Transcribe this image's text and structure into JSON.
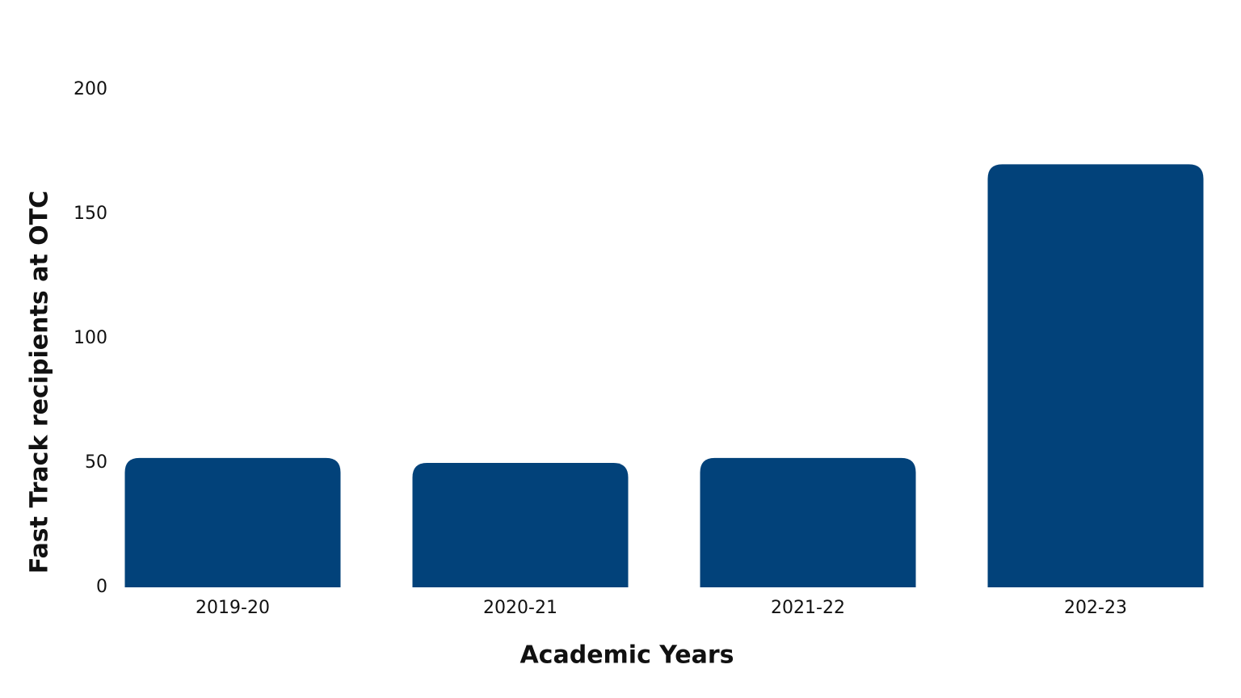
{
  "chart_data": {
    "type": "bar",
    "x_label": "Academic Years",
    "y_label": "Fast Track recipients at OTC",
    "categories": [
      "2019-20",
      "2020-21",
      "2021-22",
      "202-23"
    ],
    "values": [
      52,
      50,
      52,
      170
    ],
    "color": "#02427a",
    "ylim": [
      0,
      200
    ],
    "yticks": [
      0,
      50,
      100,
      150,
      200
    ],
    "grid": false
  }
}
